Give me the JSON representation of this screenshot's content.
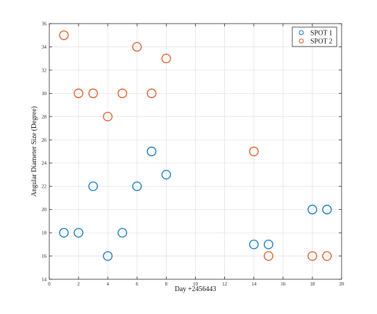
{
  "chart_data": {
    "type": "scatter",
    "title": "",
    "xlabel": "Day +2456443",
    "ylabel": "Angular Diameter Size (Degree)",
    "xlim": [
      0,
      20
    ],
    "ylim": [
      14,
      36
    ],
    "x_ticks": [
      0,
      2,
      4,
      6,
      8,
      10,
      12,
      14,
      16,
      18,
      20
    ],
    "y_ticks": [
      14,
      16,
      18,
      20,
      22,
      24,
      26,
      28,
      30,
      32,
      34,
      36
    ],
    "grid": true,
    "legend_position": "top-right",
    "series": [
      {
        "name": "SPOT 1",
        "color": "#0072BD",
        "points": [
          {
            "x": 1,
            "y": 18
          },
          {
            "x": 2,
            "y": 18
          },
          {
            "x": 3,
            "y": 22
          },
          {
            "x": 4,
            "y": 16
          },
          {
            "x": 5,
            "y": 18
          },
          {
            "x": 6,
            "y": 22
          },
          {
            "x": 7,
            "y": 25
          },
          {
            "x": 8,
            "y": 23
          },
          {
            "x": 14,
            "y": 17
          },
          {
            "x": 15,
            "y": 17
          },
          {
            "x": 18,
            "y": 20
          },
          {
            "x": 19,
            "y": 20
          }
        ]
      },
      {
        "name": "SPOT 2",
        "color": "#D95319",
        "points": [
          {
            "x": 1,
            "y": 35
          },
          {
            "x": 2,
            "y": 30
          },
          {
            "x": 3,
            "y": 30
          },
          {
            "x": 4,
            "y": 28
          },
          {
            "x": 5,
            "y": 30
          },
          {
            "x": 6,
            "y": 34
          },
          {
            "x": 7,
            "y": 30
          },
          {
            "x": 8,
            "y": 33
          },
          {
            "x": 14,
            "y": 25
          },
          {
            "x": 15,
            "y": 16
          },
          {
            "x": 18,
            "y": 16
          },
          {
            "x": 19,
            "y": 16
          }
        ]
      }
    ]
  }
}
